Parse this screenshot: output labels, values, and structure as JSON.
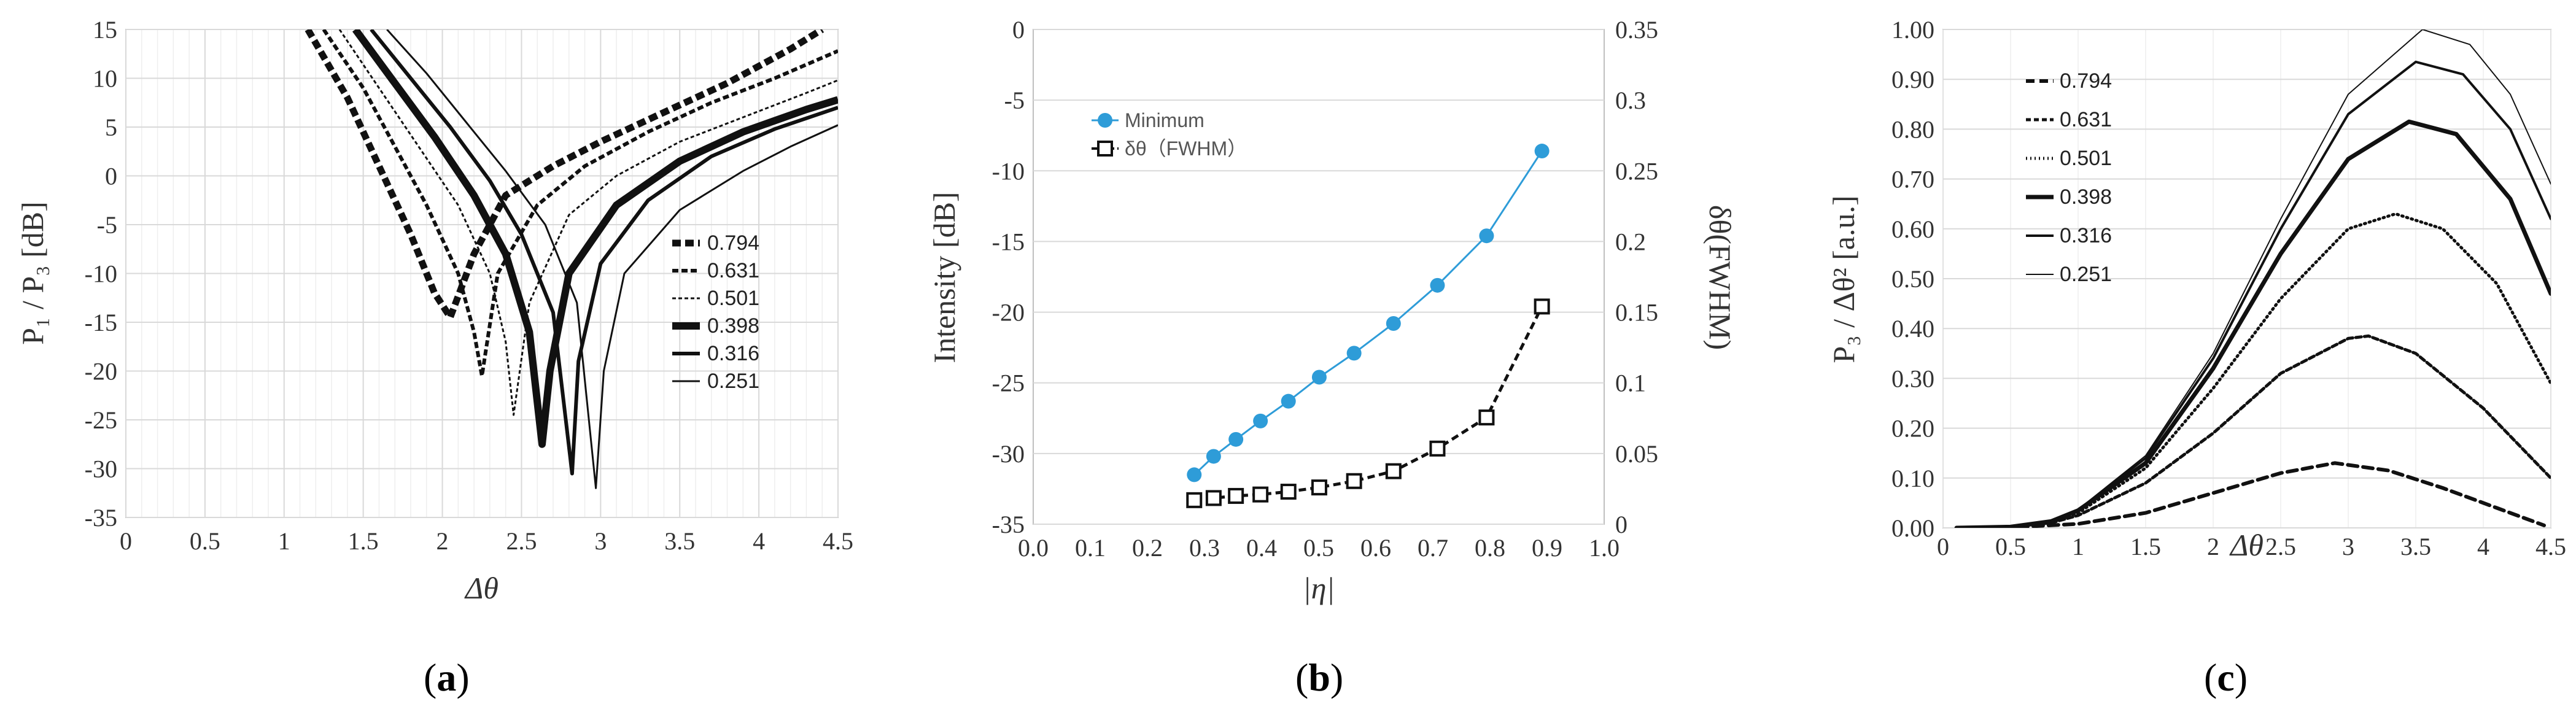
{
  "chart_data": [
    {
      "type": "line",
      "panel_label": "a",
      "xlabel": "Δθ",
      "ylabel": "P₁ / P₃ [dB]",
      "xlim": [
        0,
        4.5
      ],
      "ylim": [
        -35,
        15
      ],
      "xticks": [
        "0",
        "0.5",
        "1",
        "1.5",
        "2",
        "2.5",
        "3",
        "3.5",
        "4",
        "4.5"
      ],
      "yticks": [
        "15",
        "10",
        "5",
        "0",
        "-5",
        "-10",
        "-15",
        "-20",
        "-25",
        "-30",
        "-35"
      ],
      "legend_position": "right",
      "series": [
        {
          "name": "0.794",
          "x": [
            1.15,
            1.4,
            1.6,
            1.8,
            1.95,
            2.05,
            2.2,
            2.4,
            2.7,
            3.0,
            3.4,
            3.8,
            4.2,
            4.4
          ],
          "y": [
            15,
            8,
            1,
            -6,
            -12,
            -14.5,
            -8,
            -2,
            1,
            3.5,
            6.5,
            9.5,
            13,
            15
          ]
        },
        {
          "name": "0.631",
          "x": [
            1.25,
            1.5,
            1.7,
            1.9,
            2.1,
            2.2,
            2.25,
            2.35,
            2.6,
            2.9,
            3.3,
            3.7,
            4.1,
            4.5
          ],
          "y": [
            15,
            9,
            3,
            -3,
            -10,
            -16,
            -20.5,
            -10,
            -3,
            1,
            4.5,
            7.5,
            10,
            12.8
          ]
        },
        {
          "name": "0.501",
          "x": [
            1.35,
            1.6,
            1.85,
            2.1,
            2.3,
            2.4,
            2.45,
            2.55,
            2.8,
            3.1,
            3.5,
            3.9,
            4.3,
            4.5
          ],
          "y": [
            15,
            9,
            3,
            -3,
            -10,
            -17,
            -24.5,
            -13,
            -4,
            0,
            3.5,
            6,
            8.5,
            9.8
          ]
        },
        {
          "name": "0.398",
          "x": [
            1.45,
            1.7,
            1.95,
            2.2,
            2.4,
            2.55,
            2.63,
            2.68,
            2.8,
            3.1,
            3.5,
            3.9,
            4.3,
            4.5
          ],
          "y": [
            15,
            9.5,
            4,
            -2,
            -8,
            -16,
            -27.5,
            -20,
            -10,
            -3,
            1.5,
            4.5,
            6.8,
            7.8
          ]
        },
        {
          "name": "0.316",
          "x": [
            1.55,
            1.8,
            2.05,
            2.3,
            2.5,
            2.7,
            2.82,
            2.86,
            3.0,
            3.3,
            3.7,
            4.1,
            4.5
          ],
          "y": [
            15,
            10,
            5,
            -0.5,
            -6,
            -14,
            -30.5,
            -19,
            -9,
            -2.5,
            2,
            4.8,
            7
          ]
        },
        {
          "name": "0.251",
          "x": [
            1.65,
            1.9,
            2.15,
            2.4,
            2.65,
            2.85,
            2.97,
            3.02,
            3.15,
            3.5,
            3.9,
            4.2,
            4.5
          ],
          "y": [
            15,
            10.5,
            5.5,
            0.5,
            -5,
            -13,
            -32,
            -20,
            -10,
            -3.5,
            0.5,
            3,
            5.2
          ]
        }
      ]
    },
    {
      "type": "line",
      "panel_label": "b",
      "xlabel": "|η|",
      "ylabel": "Intensity [dB]",
      "y2label": "δθ(FWHM)",
      "xlim": [
        0,
        1.0
      ],
      "ylim": [
        -35,
        0
      ],
      "y2lim": [
        0,
        0.35
      ],
      "xticks": [
        "0.0",
        "0.1",
        "0.2",
        "0.3",
        "0.4",
        "0.5",
        "0.6",
        "0.7",
        "0.8",
        "0.9",
        "1.0"
      ],
      "yticks": [
        "0",
        "-5",
        "-10",
        "-15",
        "-20",
        "-25",
        "-30",
        "-35"
      ],
      "y2ticks": [
        "0.35",
        "0.3",
        "0.25",
        "0.2",
        "0.15",
        "0.1",
        "0.05",
        "0"
      ],
      "legend_position": "top-left",
      "series": [
        {
          "name": "Minimum",
          "axis": "left",
          "color": "#2e9cd8",
          "x": [
            0.282,
            0.316,
            0.355,
            0.398,
            0.447,
            0.501,
            0.562,
            0.631,
            0.708,
            0.794,
            0.891
          ],
          "y": [
            -31.5,
            -30.2,
            -29,
            -27.7,
            -26.3,
            -24.6,
            -22.9,
            -20.8,
            -18.1,
            -14.6,
            -8.6
          ]
        },
        {
          "name": "δθ（FWHM）",
          "axis": "right",
          "color": "#111111",
          "x": [
            0.282,
            0.316,
            0.355,
            0.398,
            0.447,
            0.501,
            0.562,
            0.631,
            0.708,
            0.794,
            0.891
          ],
          "y": [
            0.017,
            0.0185,
            0.02,
            0.021,
            0.023,
            0.026,
            0.0305,
            0.0375,
            0.0535,
            0.0755,
            0.154
          ]
        }
      ]
    },
    {
      "type": "line",
      "panel_label": "c",
      "xlabel": "Δθ",
      "ylabel": "P₃ / Δθ² [a.u.]",
      "xlim": [
        0,
        4.5
      ],
      "ylim": [
        0,
        1.0
      ],
      "xticks": [
        "0",
        "0.5",
        "1",
        "1.5",
        "2",
        "2.5",
        "3",
        "3.5",
        "4",
        "4.5"
      ],
      "yticks": [
        "1.00",
        "0.90",
        "0.80",
        "0.70",
        "0.60",
        "0.50",
        "0.40",
        "0.30",
        "0.20",
        "0.10",
        "0.00"
      ],
      "legend_position": "top-left",
      "series": [
        {
          "name": "0.794",
          "peak_x": 2.9,
          "peak_y": 0.13,
          "x": [
            0.1,
            0.5,
            1.0,
            1.5,
            2.0,
            2.5,
            2.9,
            3.3,
            3.7,
            4.1,
            4.45
          ],
          "y": [
            0,
            0.001,
            0.008,
            0.03,
            0.07,
            0.11,
            0.13,
            0.115,
            0.08,
            0.04,
            0.005
          ]
        },
        {
          "name": "0.631",
          "peak_x": 3.15,
          "peak_y": 0.385,
          "x": [
            0.1,
            0.5,
            0.8,
            1.0,
            1.5,
            2.0,
            2.5,
            3.0,
            3.15,
            3.5,
            4.0,
            4.5
          ],
          "y": [
            0,
            0.002,
            0.01,
            0.025,
            0.09,
            0.19,
            0.31,
            0.38,
            0.385,
            0.35,
            0.24,
            0.1
          ]
        },
        {
          "name": "0.501",
          "peak_x": 3.35,
          "peak_y": 0.63,
          "x": [
            0.1,
            0.5,
            0.8,
            1.0,
            1.5,
            2.0,
            2.5,
            3.0,
            3.35,
            3.7,
            4.1,
            4.5
          ],
          "y": [
            0,
            0.002,
            0.012,
            0.03,
            0.12,
            0.28,
            0.46,
            0.6,
            0.63,
            0.6,
            0.49,
            0.29
          ]
        },
        {
          "name": "0.398",
          "peak_x": 3.45,
          "peak_y": 0.815,
          "x": [
            0.1,
            0.5,
            0.8,
            1.0,
            1.5,
            2.0,
            2.5,
            3.0,
            3.45,
            3.8,
            4.2,
            4.5
          ],
          "y": [
            0,
            0.002,
            0.013,
            0.035,
            0.13,
            0.32,
            0.55,
            0.74,
            0.815,
            0.79,
            0.66,
            0.47
          ]
        },
        {
          "name": "0.316",
          "peak_x": 3.5,
          "peak_y": 0.935,
          "x": [
            0.1,
            0.5,
            0.8,
            1.0,
            1.5,
            2.0,
            2.5,
            3.0,
            3.5,
            3.85,
            4.2,
            4.5
          ],
          "y": [
            0,
            0.002,
            0.013,
            0.036,
            0.14,
            0.34,
            0.6,
            0.83,
            0.935,
            0.91,
            0.8,
            0.62
          ]
        },
        {
          "name": "0.251",
          "peak_x": 3.55,
          "peak_y": 1.0,
          "x": [
            0.1,
            0.5,
            0.8,
            1.0,
            1.5,
            2.0,
            2.5,
            3.0,
            3.55,
            3.9,
            4.2,
            4.5
          ],
          "y": [
            0,
            0.002,
            0.014,
            0.037,
            0.145,
            0.35,
            0.62,
            0.87,
            1.0,
            0.97,
            0.87,
            0.69
          ]
        }
      ]
    }
  ]
}
